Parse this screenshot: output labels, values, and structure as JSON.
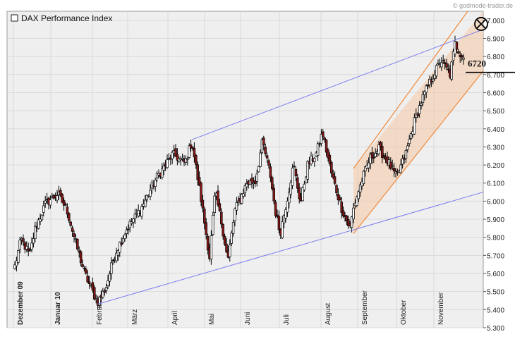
{
  "credit": "© godmode-trader.de",
  "chart_data": {
    "type": "candlestick",
    "title": "",
    "legend": {
      "label": "DAX Performance Index",
      "position": "top-left"
    },
    "ylabel": "",
    "xlabel": "",
    "ylim": [
      5300,
      7050
    ],
    "y_ticks": [
      5300,
      5400,
      5500,
      5600,
      5700,
      5800,
      5900,
      6000,
      6100,
      6200,
      6300,
      6400,
      6500,
      6600,
      6700,
      6800,
      6900,
      7000
    ],
    "y_tick_labels": [
      "5.300",
      "5.400",
      "5.500",
      "5.600",
      "5.700",
      "5.800",
      "5.900",
      "6.000",
      "6.100",
      "6.200",
      "6.300",
      "6.400",
      "6.500",
      "6.600",
      "6.700",
      "6.800",
      "6.900",
      "7.000"
    ],
    "x_months": [
      {
        "label": "Dezember 09",
        "bold": true
      },
      {
        "label": "Januar 10",
        "bold": true
      },
      {
        "label": "Februar",
        "bold": false
      },
      {
        "label": "März",
        "bold": false
      },
      {
        "label": "April",
        "bold": false
      },
      {
        "label": "Mai",
        "bold": false
      },
      {
        "label": "Juni",
        "bold": false
      },
      {
        "label": "Juli",
        "bold": false
      },
      {
        "label": "August",
        "bold": false
      },
      {
        "label": "September",
        "bold": false
      },
      {
        "label": "Oktober",
        "bold": false
      },
      {
        "label": "November",
        "bold": false
      }
    ],
    "grid": true,
    "colors": {
      "up_candle": "#ffffff",
      "down_candle": "#8b1a1a",
      "candle_outline": "#000000",
      "trendline": "#7b7bf0",
      "channel": "#f08a3c",
      "channel_fill": "#f6c9a6",
      "plot_bg": "#efefef",
      "grid": "#dadada"
    },
    "key_points": [
      {
        "date": "Anfang Dezember 09",
        "close": 5640
      },
      {
        "date": "Mitte Januar 10",
        "close": 6040
      },
      {
        "date": "Anfang Februar",
        "close": 5440
      },
      {
        "date": "Ende April",
        "close": 6330
      },
      {
        "date": "Anfang Mai",
        "close": 5690
      },
      {
        "date": "Ende Mai",
        "close": 5670
      },
      {
        "date": "Mitte Juni",
        "close": 6330
      },
      {
        "date": "Anfang Juli",
        "close": 5820
      },
      {
        "date": "Mitte August",
        "close": 6380
      },
      {
        "date": "Ende August",
        "close": 5850
      },
      {
        "date": "Mitte September",
        "close": 6290
      },
      {
        "date": "Anfang Oktober",
        "close": 6130
      },
      {
        "date": "Ende Oktober",
        "close": 6750
      },
      {
        "date": "Anfang November",
        "close": 6890
      },
      {
        "date": "Mitte November",
        "close": 6780
      }
    ],
    "trendlines": {
      "lower_support": {
        "from": {
          "date": "Anfang Februar",
          "value": 5430
        },
        "to": {
          "date": "Ende November",
          "value": 6050
        }
      },
      "upper_resistance": {
        "from": {
          "date": "Ende April",
          "value": 6340
        },
        "to": {
          "date": "Ende November",
          "value": 6950
        }
      },
      "channel_upper": {
        "from": {
          "date": "Ende August",
          "value": 6180
        },
        "to": {
          "date": "Ende November",
          "value": 7050
        }
      },
      "channel_lower": {
        "from": {
          "date": "Ende August",
          "value": 5820
        },
        "to": {
          "date": "Ende November",
          "value": 6720
        }
      }
    },
    "annotations": [
      {
        "text": "6720",
        "value": 6720
      },
      {
        "text": "",
        "marker": "circled-x",
        "value": 6980
      }
    ]
  }
}
